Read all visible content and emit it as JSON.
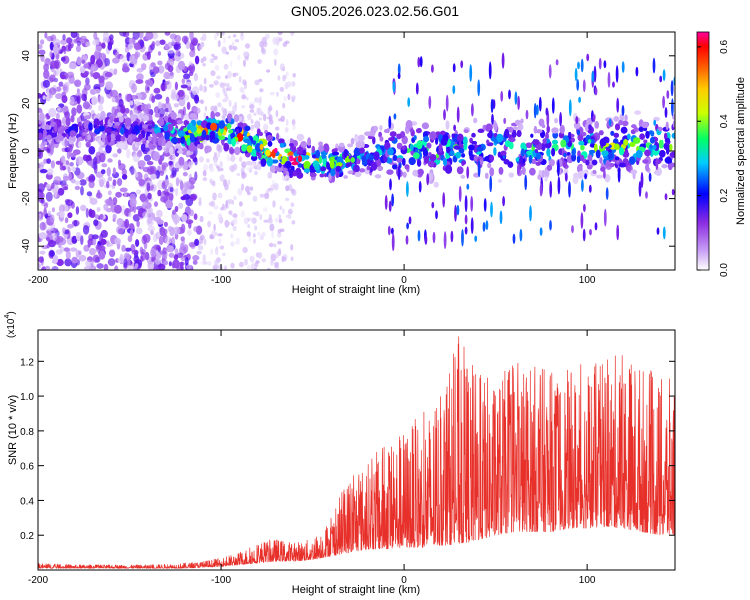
{
  "figure": {
    "title": "GN05.2026.023.02.56.G01"
  },
  "colors": {
    "snr_line": "#e8302a",
    "axes": "#000000",
    "background": "#ffffff"
  },
  "chart_data": [
    {
      "type": "heatmap",
      "title": "GN05.2026.023.02.56.G01",
      "xlabel": "Height of straight line (km)",
      "ylabel": "Frequency (Hz)",
      "xlim": [
        -200,
        148
      ],
      "ylim": [
        -50,
        50
      ],
      "xticks": [
        -200,
        -100,
        0,
        100
      ],
      "xtick_labels": [
        "-200",
        "-100",
        "0",
        "100"
      ],
      "yticks": [
        -40,
        -20,
        0,
        20,
        40
      ],
      "ytick_labels": [
        "-40",
        "-20",
        "0",
        "20",
        "40"
      ],
      "colorbar": {
        "label": "Normalized spectral amplitude",
        "range": [
          0,
          0.64
        ],
        "ticks": [
          0,
          0.2,
          0.4,
          0.6
        ],
        "tick_labels": [
          "0.0",
          "0.2",
          "0.4",
          "0.6"
        ],
        "colormap": [
          "#ffffff",
          "#8a2be2",
          "#0000ff",
          "#00ffff",
          "#00ff00",
          "#ffff00",
          "#ff8000",
          "#ff0000",
          "#ff00a0"
        ]
      },
      "ridge": {
        "description": "bright band of high amplitude near 0 Hz",
        "x": [
          -200,
          -140,
          -120,
          -100,
          -90,
          -80,
          -70,
          -60,
          -50,
          -40,
          -30,
          -20,
          0,
          20,
          40,
          60,
          80,
          100,
          120,
          148
        ],
        "center_hz": [
          9,
          9,
          7,
          9,
          6,
          2,
          -1,
          -4,
          -4,
          -5,
          -4,
          -2,
          0,
          0,
          1,
          1,
          1,
          2,
          2,
          3
        ],
        "peak_amplitude": [
          0.2,
          0.25,
          0.45,
          0.6,
          0.55,
          0.6,
          0.62,
          0.6,
          0.55,
          0.45,
          0.4,
          0.3,
          0.35,
          0.4,
          0.35,
          0.38,
          0.35,
          0.4,
          0.45,
          0.4
        ]
      },
      "noise_region": {
        "x_range": [
          -200,
          -112
        ],
        "amplitude": 0.15
      },
      "faint_band": {
        "x_range": [
          -112,
          -60
        ],
        "amplitude": 0.05
      }
    },
    {
      "type": "line",
      "title": "",
      "xlabel": "Height of straight line (km)",
      "ylabel": "SNR (10 * v/v)",
      "y_multiplier_label": "(x10",
      "y_multiplier_exp": "4",
      "y_multiplier_close": ")",
      "xlim": [
        -200,
        148
      ],
      "ylim": [
        0,
        1.38
      ],
      "xticks": [
        -200,
        -100,
        0,
        100
      ],
      "xtick_labels": [
        "-200",
        "-100",
        "0",
        "100"
      ],
      "yticks": [
        0.2,
        0.4,
        0.6,
        0.8,
        1.0,
        1.2
      ],
      "ytick_labels": [
        "0.2",
        "0.4",
        "0.6",
        "0.8",
        "1.0",
        "1.2"
      ],
      "series": [
        {
          "name": "SNR",
          "x": [
            -200,
            -180,
            -160,
            -140,
            -120,
            -110,
            -100,
            -90,
            -80,
            -70,
            -60,
            -50,
            -40,
            -30,
            -20,
            -10,
            0,
            10,
            20,
            30,
            40,
            50,
            60,
            70,
            80,
            90,
            100,
            110,
            120,
            130,
            140,
            148
          ],
          "baseline": [
            0.01,
            0.01,
            0.01,
            0.01,
            0.01,
            0.015,
            0.02,
            0.03,
            0.04,
            0.05,
            0.05,
            0.06,
            0.08,
            0.1,
            0.12,
            0.12,
            0.13,
            0.13,
            0.14,
            0.15,
            0.17,
            0.2,
            0.22,
            0.22,
            0.22,
            0.24,
            0.24,
            0.25,
            0.24,
            0.22,
            0.2,
            0.2
          ],
          "envelope": [
            0.04,
            0.03,
            0.03,
            0.03,
            0.04,
            0.05,
            0.07,
            0.1,
            0.16,
            0.18,
            0.16,
            0.18,
            0.3,
            0.55,
            0.62,
            0.75,
            0.82,
            0.9,
            1.0,
            1.35,
            1.15,
            1.1,
            1.2,
            1.2,
            1.15,
            1.15,
            1.2,
            1.2,
            1.28,
            1.2,
            1.1,
            1.1
          ]
        }
      ]
    }
  ]
}
